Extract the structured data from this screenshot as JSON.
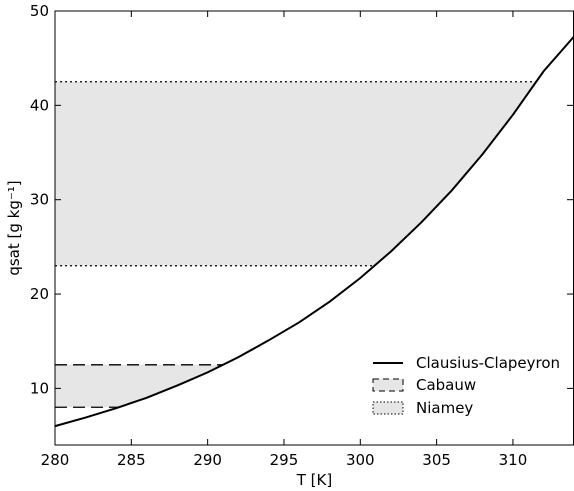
{
  "chart_data": {
    "type": "line",
    "xlabel": "T [K]",
    "ylabel": "qsat [g kg⁻¹]",
    "xlim": [
      280,
      314
    ],
    "ylim": [
      4,
      50
    ],
    "xticks": [
      {
        "value": 280,
        "label": "280"
      },
      {
        "value": 285,
        "label": "285"
      },
      {
        "value": 290,
        "label": "290"
      },
      {
        "value": 295,
        "label": "295"
      },
      {
        "value": 300,
        "label": "300"
      },
      {
        "value": 305,
        "label": "305"
      },
      {
        "value": 310,
        "label": "310"
      }
    ],
    "yticks": [
      {
        "value": 10,
        "label": "10"
      },
      {
        "value": 20,
        "label": "20"
      },
      {
        "value": 30,
        "label": "30"
      },
      {
        "value": 40,
        "label": "40"
      },
      {
        "value": 50,
        "label": "50"
      }
    ],
    "series": [
      {
        "name": "Clausius-Clapeyron",
        "style": "solid",
        "color": "#000000",
        "x": [
          280,
          282,
          284,
          286,
          288,
          290,
          292,
          294,
          296,
          298,
          300,
          302,
          304,
          306,
          308,
          310,
          312,
          314
        ],
        "y": [
          6.0,
          6.9,
          7.9,
          9.0,
          10.3,
          11.7,
          13.3,
          15.1,
          17.0,
          19.2,
          21.7,
          24.5,
          27.6,
          31.0,
          34.8,
          39.0,
          43.6,
          47.3
        ]
      }
    ],
    "bands": [
      {
        "name": "Cabauw",
        "style": "dashed",
        "fill": "#e6e6e6",
        "x_start": 280,
        "y_low": 8.0,
        "y_high": 12.5
      },
      {
        "name": "Niamey",
        "style": "dotted",
        "fill": "#e6e6e6",
        "x_start": 280,
        "y_low": 23.0,
        "y_high": 42.5
      }
    ],
    "legend": {
      "position": "lower-right",
      "entries": [
        "Clausius-Clapeyron",
        "Cabauw",
        "Niamey"
      ]
    },
    "grid": false
  }
}
